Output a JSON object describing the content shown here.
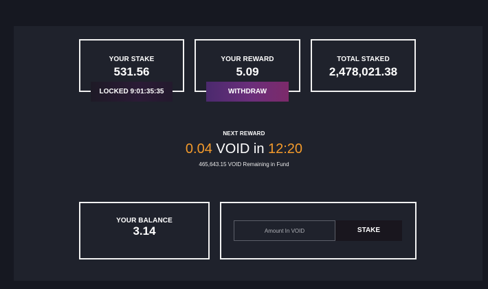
{
  "stats": {
    "stake": {
      "label": "YOUR STAKE",
      "value": "531.56"
    },
    "reward": {
      "label": "YOUR REWARD",
      "value": "5.09"
    },
    "total": {
      "label": "TOTAL STAKED",
      "value": "2,478,021.38"
    }
  },
  "locked": {
    "text": "LOCKED 9:01:35:35"
  },
  "withdraw": {
    "label": "WITHDRAW"
  },
  "next_reward": {
    "label": "NEXT REWARD",
    "amount": "0.04",
    "token_in": " VOID in ",
    "time": "12:20",
    "remaining": "465,643.15 VOID Remaining in Fund"
  },
  "balance": {
    "label": "YOUR BALANCE",
    "value": "3.14"
  },
  "stake_form": {
    "placeholder": "Amount In VOID",
    "button_label": "STAKE"
  },
  "colors": {
    "background": "#161821",
    "panel": "#1f222c",
    "accent_orange": "#f39a2b",
    "withdraw_purple": "#6b2e7a"
  }
}
